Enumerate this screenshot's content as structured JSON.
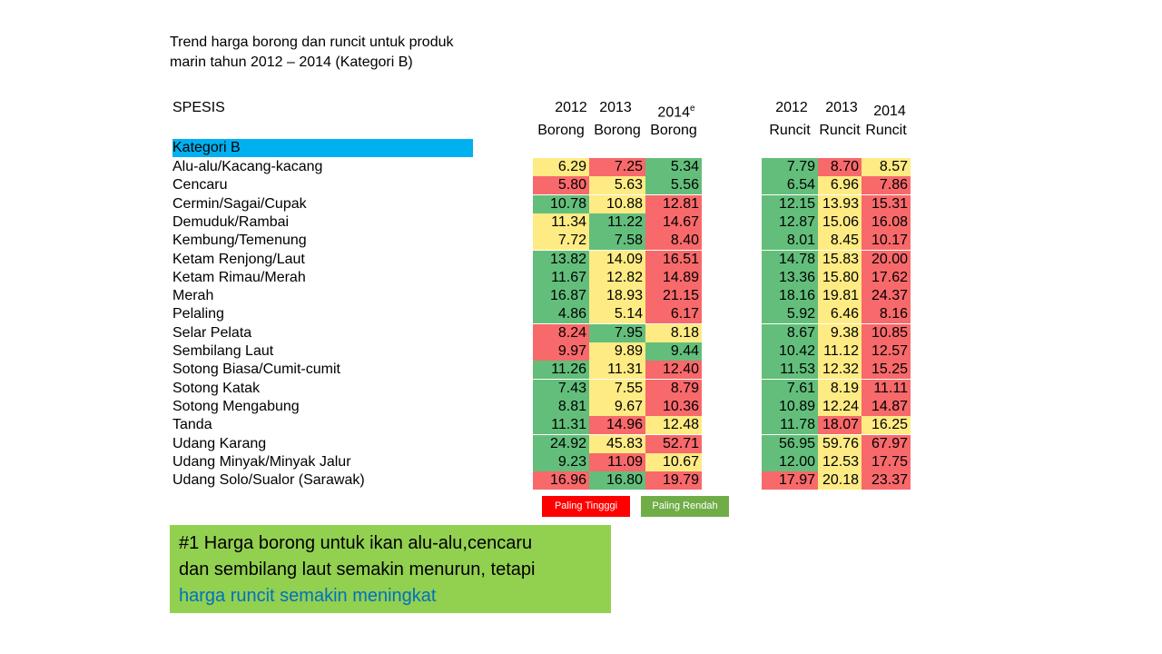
{
  "title": {
    "line1": "Trend harga borong dan runcit untuk produk",
    "line2": "marin tahun 2012 – 2014 (Kategori B)"
  },
  "table": {
    "species_header": "SPESIS",
    "columns": [
      {
        "year": "2012",
        "sup": "",
        "type": "Borong"
      },
      {
        "year": "2013",
        "sup": "",
        "type": "Borong"
      },
      {
        "year": "2014",
        "sup": "e",
        "type": "Borong"
      },
      {
        "year": "2012",
        "sup": "",
        "type": "Runcit"
      },
      {
        "year": "2013",
        "sup": "",
        "type": "Runcit"
      },
      {
        "year": "2014",
        "sup": "",
        "type": "Runcit"
      }
    ],
    "category_label": "Kategori B",
    "rows": [
      {
        "name": "Alu-alu/Kacang-kacang",
        "values": [
          "6.29",
          "7.25",
          "5.34",
          "7.79",
          "8.70",
          "8.57"
        ],
        "colors": [
          "y",
          "r",
          "g",
          "g",
          "r",
          "y"
        ]
      },
      {
        "name": "Cencaru",
        "values": [
          "5.80",
          "5.63",
          "5.56",
          "6.54",
          "6.96",
          "7.86"
        ],
        "colors": [
          "r",
          "y",
          "g",
          "g",
          "y",
          "r"
        ]
      },
      {
        "name": "Cermin/Sagai/Cupak",
        "values": [
          "10.78",
          "10.88",
          "12.81",
          "12.15",
          "13.93",
          "15.31"
        ],
        "colors": [
          "g",
          "y",
          "r",
          "g",
          "y",
          "r"
        ]
      },
      {
        "name": "Demuduk/Rambai",
        "values": [
          "11.34",
          "11.22",
          "14.67",
          "12.87",
          "15.06",
          "16.08"
        ],
        "colors": [
          "y",
          "g",
          "r",
          "g",
          "y",
          "r"
        ]
      },
      {
        "name": "Kembung/Temenung",
        "values": [
          "7.72",
          "7.58",
          "8.40",
          "8.01",
          "8.45",
          "10.17"
        ],
        "colors": [
          "y",
          "g",
          "r",
          "g",
          "y",
          "r"
        ]
      },
      {
        "name": "Ketam Renjong/Laut",
        "values": [
          "13.82",
          "14.09",
          "16.51",
          "14.78",
          "15.83",
          "20.00"
        ],
        "colors": [
          "g",
          "y",
          "r",
          "g",
          "y",
          "r"
        ]
      },
      {
        "name": "Ketam Rimau/Merah",
        "values": [
          "11.67",
          "12.82",
          "14.89",
          "13.36",
          "15.80",
          "17.62"
        ],
        "colors": [
          "g",
          "y",
          "r",
          "g",
          "y",
          "r"
        ]
      },
      {
        "name": "Merah",
        "values": [
          "16.87",
          "18.93",
          "21.15",
          "18.16",
          "19.81",
          "24.37"
        ],
        "colors": [
          "g",
          "y",
          "r",
          "g",
          "y",
          "r"
        ]
      },
      {
        "name": "Pelaling",
        "values": [
          "4.86",
          "5.14",
          "6.17",
          "5.92",
          "6.46",
          "8.16"
        ],
        "colors": [
          "g",
          "y",
          "r",
          "g",
          "y",
          "r"
        ]
      },
      {
        "name": "Selar Pelata",
        "values": [
          "8.24",
          "7.95",
          "8.18",
          "8.67",
          "9.38",
          "10.85"
        ],
        "colors": [
          "r",
          "g",
          "y",
          "g",
          "y",
          "r"
        ]
      },
      {
        "name": "Sembilang Laut",
        "values": [
          "9.97",
          "9.89",
          "9.44",
          "10.42",
          "11.12",
          "12.57"
        ],
        "colors": [
          "r",
          "y",
          "g",
          "g",
          "y",
          "r"
        ]
      },
      {
        "name": "Sotong Biasa/Cumit-cumit",
        "values": [
          "11.26",
          "11.31",
          "12.40",
          "11.53",
          "12.32",
          "15.25"
        ],
        "colors": [
          "g",
          "y",
          "r",
          "g",
          "y",
          "r"
        ]
      },
      {
        "name": "Sotong Katak",
        "values": [
          "7.43",
          "7.55",
          "8.79",
          "7.61",
          "8.19",
          "11.11"
        ],
        "colors": [
          "g",
          "y",
          "r",
          "g",
          "y",
          "r"
        ]
      },
      {
        "name": "Sotong Mengabung",
        "values": [
          "8.81",
          "9.67",
          "10.36",
          "10.89",
          "12.24",
          "14.87"
        ],
        "colors": [
          "g",
          "y",
          "r",
          "g",
          "y",
          "r"
        ]
      },
      {
        "name": "Tanda",
        "values": [
          "11.31",
          "14.96",
          "12.48",
          "11.78",
          "18.07",
          "16.25"
        ],
        "colors": [
          "g",
          "r",
          "y",
          "g",
          "r",
          "y"
        ]
      },
      {
        "name": "Udang Karang",
        "values": [
          "24.92",
          "45.83",
          "52.71",
          "56.95",
          "59.76",
          "67.97"
        ],
        "colors": [
          "g",
          "y",
          "r",
          "g",
          "y",
          "r"
        ]
      },
      {
        "name": "Udang Minyak/Minyak Jalur",
        "values": [
          "9.23",
          "11.09",
          "10.67",
          "12.00",
          "12.53",
          "17.75"
        ],
        "colors": [
          "g",
          "r",
          "y",
          "g",
          "y",
          "r"
        ]
      },
      {
        "name": "Udang Solo/Sualor (Sarawak)",
        "values": [
          "16.96",
          "16.80",
          "19.79",
          "17.97",
          "20.18",
          "23.37"
        ],
        "colors": [
          "r",
          "g",
          "r",
          "r",
          "y",
          "r"
        ]
      }
    ]
  },
  "legend": {
    "high_label": "Paling Tingggi",
    "high_color": "#ff0000",
    "low_label": "Paling Rendah",
    "low_color": "#70ad47"
  },
  "note": {
    "line1": "#1 Harga borong untuk ikan alu-alu,cencaru",
    "line2": "dan sembilang laut semakin menurun, tetapi",
    "line3_highlight": "harga runcit semakin meningkat",
    "highlight_color": "#0070c0",
    "background": "#92d050"
  },
  "colors": {
    "green": "#63be7b",
    "yellow": "#ffeb84",
    "red": "#f8696b",
    "category_bar": "#00b0f0"
  }
}
